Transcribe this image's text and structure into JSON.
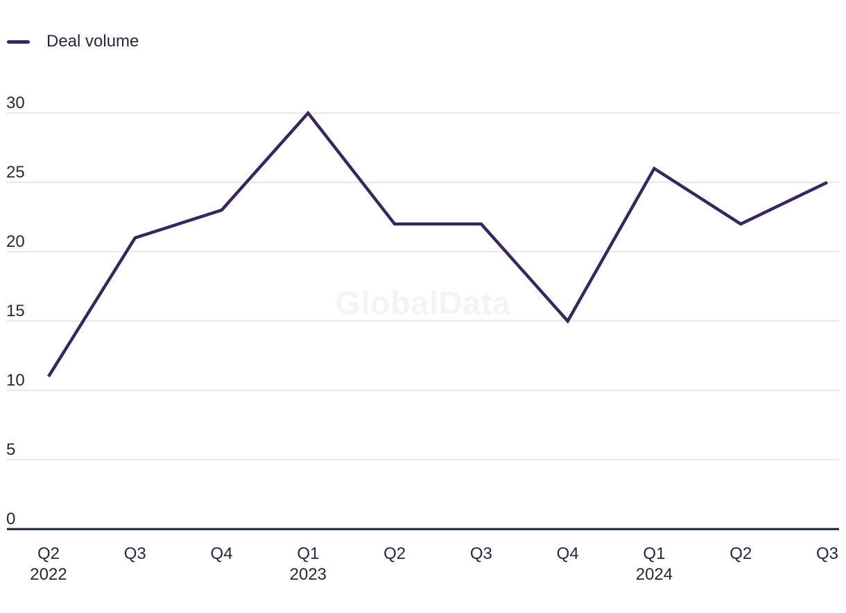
{
  "legend": {
    "label": "Deal volume"
  },
  "watermark": "GlobalData",
  "colors": {
    "background": "#FFFFFF",
    "series": "#38265C",
    "axis_line": "#1A1E33",
    "grid_line": "#E0E0E0",
    "text": "#23283F",
    "watermark": "#F4F4F4"
  },
  "chart_data": {
    "type": "line",
    "title": "",
    "xlabel": "",
    "ylabel": "",
    "categories": [
      "Q2 2022",
      "Q3 2022",
      "Q4 2022",
      "Q1 2023",
      "Q2 2023",
      "Q3 2023",
      "Q4 2023",
      "Q1 2024",
      "Q2 2024",
      "Q3 2024"
    ],
    "x_tick_labels": [
      "Q2",
      "Q3",
      "Q4",
      "Q1",
      "Q2",
      "Q3",
      "Q4",
      "Q1",
      "Q2",
      "Q3"
    ],
    "x_year_labels": [
      {
        "index": 0,
        "label": "2022"
      },
      {
        "index": 3,
        "label": "2023"
      },
      {
        "index": 7,
        "label": "2024"
      }
    ],
    "series": [
      {
        "name": "Deal volume",
        "values": [
          11,
          21,
          23,
          30,
          22,
          22,
          15,
          26,
          22,
          25
        ]
      }
    ],
    "y_ticks": [
      0,
      5,
      10,
      15,
      20,
      25,
      30
    ],
    "ylim": [
      0,
      30
    ],
    "grid": "horizontal",
    "legend_position": "top-left"
  }
}
